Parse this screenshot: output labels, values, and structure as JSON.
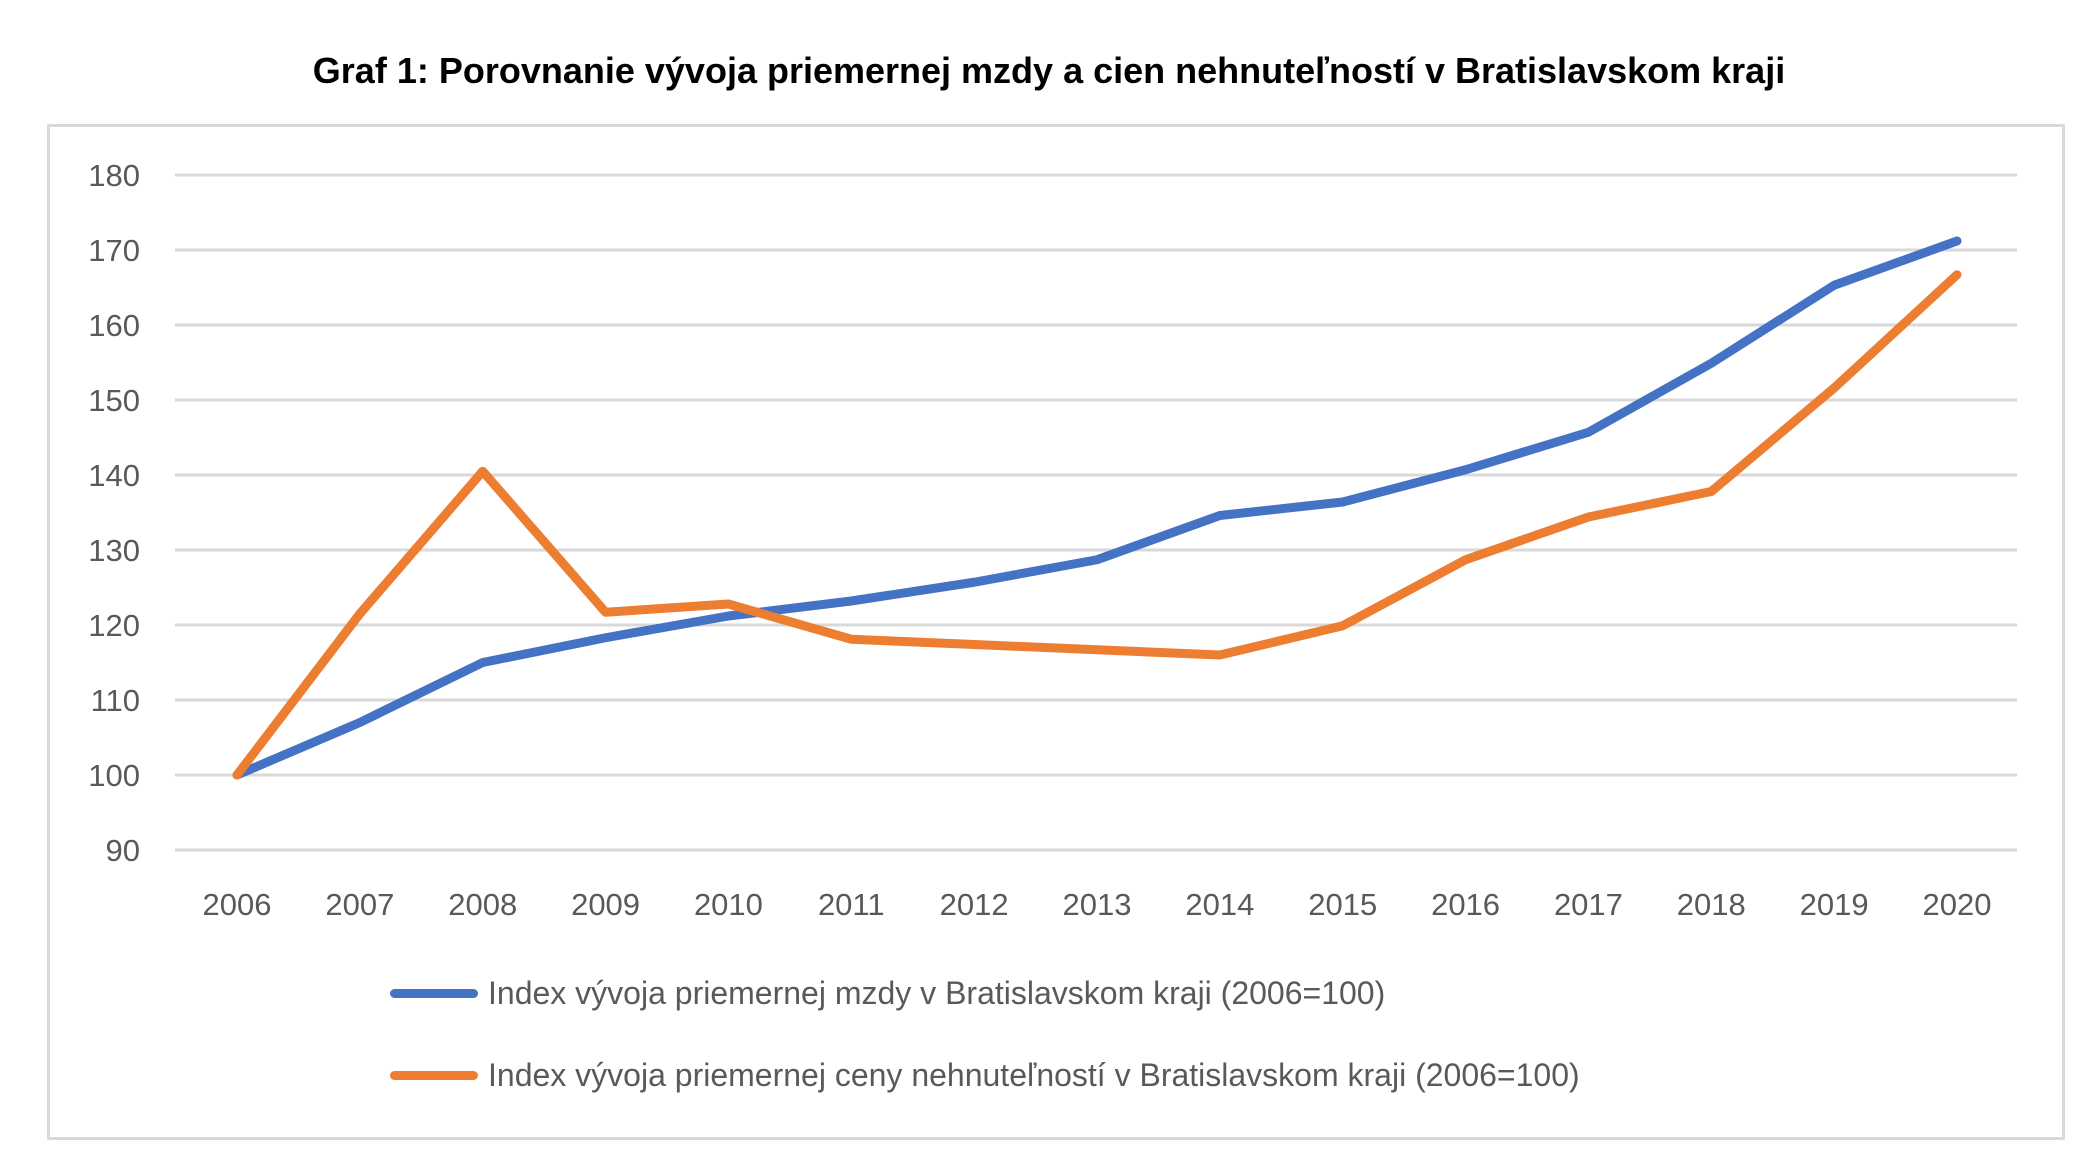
{
  "chart_data": {
    "type": "line",
    "title": "Graf 1: Porovnanie vývoja priemernej mzdy a cien nehnuteľností v Bratislavskom kraji",
    "xlabel": "",
    "ylabel": "",
    "categories": [
      "2006",
      "2007",
      "2008",
      "2009",
      "2010",
      "2011",
      "2012",
      "2013",
      "2014",
      "2015",
      "2016",
      "2017",
      "2018",
      "2019",
      "2020"
    ],
    "ylim": [
      90,
      180
    ],
    "yticks": [
      "90",
      "100",
      "110",
      "120",
      "130",
      "140",
      "150",
      "160",
      "170",
      "180"
    ],
    "grid": true,
    "legend_position": "bottom",
    "series": [
      {
        "name": "Index vývoja priemernej mzdy v Bratislavskom kraji (2006=100)",
        "color": "#4472c4",
        "values": [
          100,
          107,
          115,
          118.3,
          121.2,
          123.2,
          125.7,
          128.7,
          134.6,
          136.4,
          140.7,
          145.7,
          154.9,
          165.3,
          171.2
        ]
      },
      {
        "name": "Index vývoja priemernej ceny nehnuteľností v Bratislavskom kraji (2006=100)",
        "color": "#ed7d31",
        "values": [
          100,
          121.5,
          140.5,
          121.7,
          122.8,
          118.1,
          117.4,
          116.7,
          116,
          119.9,
          128.7,
          134.4,
          137.8,
          151.6,
          166.7
        ]
      }
    ]
  }
}
